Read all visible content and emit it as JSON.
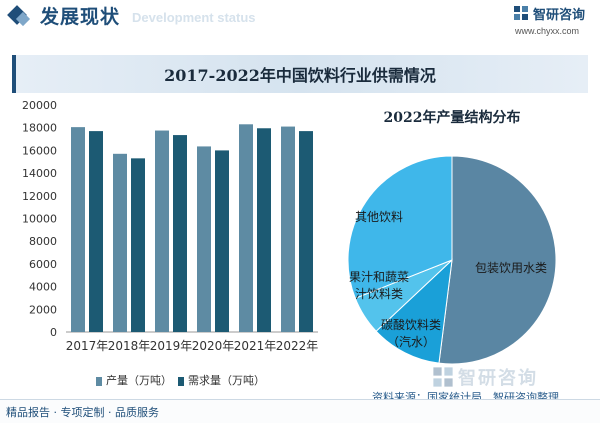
{
  "header": {
    "section_title": "发展现状",
    "section_subtitle": "Development status",
    "brand_name": "智研咨询",
    "brand_url": "www.chyxx.com"
  },
  "footer": {
    "tagline": "精品报告 · 专项定制 · 品质服务",
    "source": "资料来源：国家统计局、智研咨询整理",
    "watermark": "智研咨询"
  },
  "colors": {
    "brand": "#1f4e79",
    "production": "#5e8ba3",
    "demand": "#1c5a73",
    "pie_packaged_water": "#5a86a3",
    "pie_carbonated": "#1aa0d8",
    "pie_juice_veg": "#53c3ec",
    "pie_other": "#3fb7ea"
  },
  "chart_data": [
    {
      "type": "bar",
      "title": "2017-2022年中国饮料行业供需情况",
      "categories": [
        "2017年",
        "2018年",
        "2019年",
        "2020年",
        "2021年",
        "2022年"
      ],
      "series": [
        {
          "name": "产量（万吨）",
          "values": [
            18050,
            15700,
            17750,
            16350,
            18300,
            18100
          ]
        },
        {
          "name": "需求量（万吨）",
          "values": [
            17700,
            15300,
            17350,
            16000,
            17950,
            17700
          ]
        }
      ],
      "yticks": [
        0,
        2000,
        4000,
        6000,
        8000,
        10000,
        12000,
        14000,
        16000,
        18000,
        20000
      ],
      "ylim": [
        0,
        20000
      ],
      "grid": false,
      "legend": "bottom"
    },
    {
      "type": "pie",
      "title": "2022年产量结构分布",
      "slices": [
        {
          "label": "包装饮用水类",
          "value": 52
        },
        {
          "label": "碳酸饮料类（汽水）",
          "display": [
            "碳酸饮料类",
            "（汽水）"
          ],
          "value": 11
        },
        {
          "label": "果汁和蔬菜汁饮料类",
          "display": [
            "果汁和蔬菜",
            "汁饮料类"
          ],
          "value": 6
        },
        {
          "label": "其他饮料",
          "display": [
            "其他饮料"
          ],
          "value": 31
        }
      ]
    }
  ]
}
